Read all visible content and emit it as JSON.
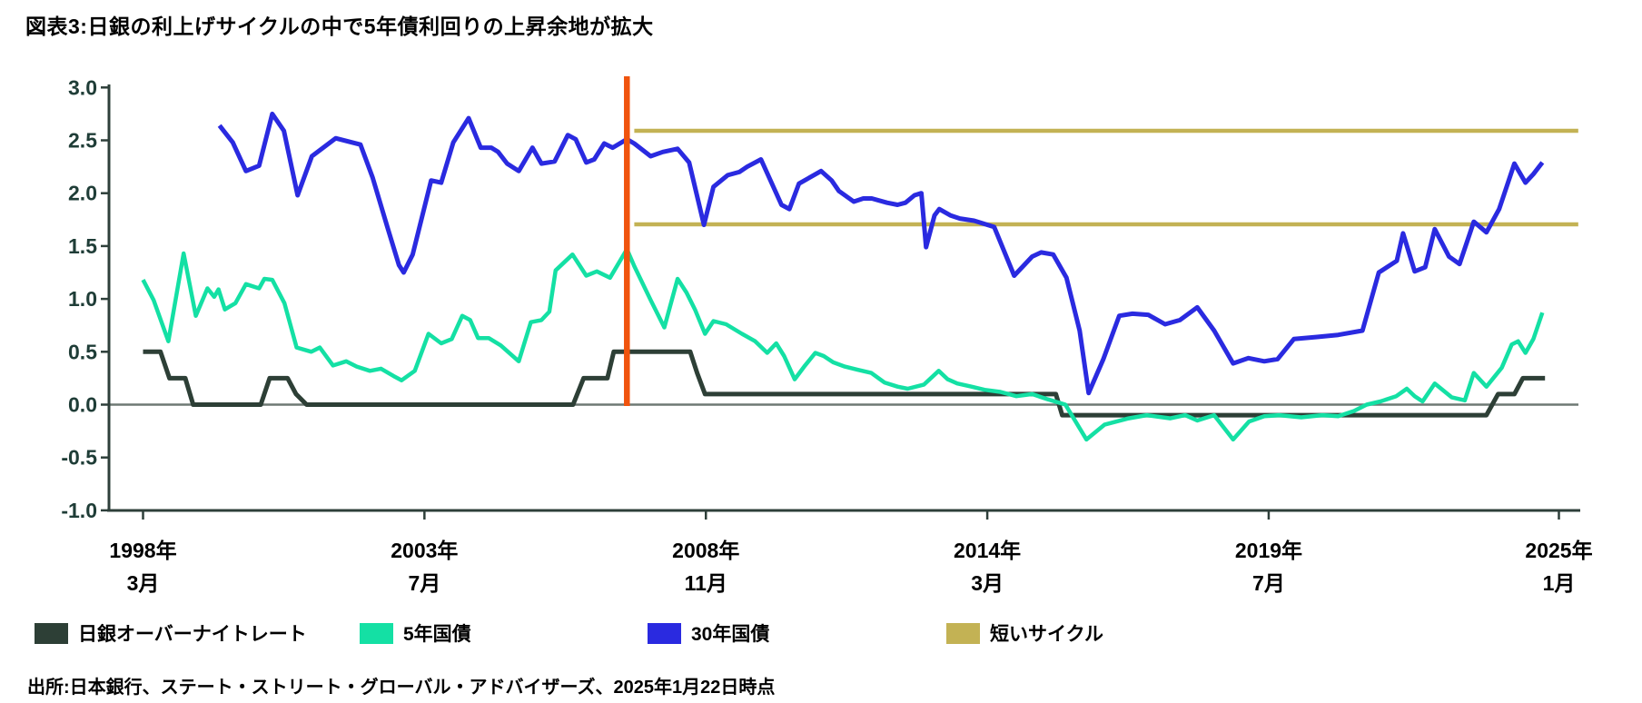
{
  "title": "図表3:日銀の利上げサイクルの中で5年債利回りの上昇余地が拡大",
  "source": "出所:日本銀行、ステート・ストリート・グローバル・アドバイザーズ、2025年1月22日時点",
  "legend": [
    {
      "label": "日銀オーバーナイトレート",
      "color": "#2d3f36"
    },
    {
      "label": "5年国債",
      "color": "#14e0a4"
    },
    {
      "label": "30年国債",
      "color": "#2a2ae0"
    },
    {
      "label": "短いサイクル",
      "color": "#c3b254"
    }
  ],
  "colors": {
    "accent_orange": "#f0540e",
    "axis": "#2e3f3a",
    "y_tick_text": "#1f3d37",
    "x_tick_text": "#000000",
    "zero_line": "#6e7974"
  },
  "chart_data": {
    "type": "line",
    "title": "図表3:日銀の利上げサイクルの中で5年債利回りの上昇余地が拡大",
    "xlabel": "",
    "ylabel": "",
    "ylim": [
      -1.0,
      3.0
    ],
    "grid": false,
    "legend_position": "bottom",
    "y_ticks": [
      "3.0",
      "2.5",
      "2.0",
      "1.5",
      "1.0",
      "0.5",
      "0.0",
      "-0.5",
      "-1.0"
    ],
    "x_ticks": [
      {
        "line1": "1998年",
        "line2": "3月",
        "t": 1998.25
      },
      {
        "line1": "2003年",
        "line2": "7月",
        "t": 2003.583
      },
      {
        "line1": "2008年",
        "line2": "11月",
        "t": 2008.917
      },
      {
        "line1": "2014年",
        "line2": "3月",
        "t": 2014.25
      },
      {
        "line1": "2019年",
        "line2": "7月",
        "t": 2019.583
      },
      {
        "line1": "2025年",
        "line2": "1月",
        "t": 2025.083
      }
    ],
    "series": [
      {
        "name": "日銀オーバーナイトレート",
        "key": "boj-overnight-rate",
        "color": "#2d3f36",
        "width": 5,
        "points": [
          [
            1998.25,
            0.5
          ],
          [
            1998.58,
            0.5
          ],
          [
            1998.75,
            0.25
          ],
          [
            1999.05,
            0.25
          ],
          [
            1999.2,
            0.0
          ],
          [
            2000.48,
            0.0
          ],
          [
            2000.65,
            0.25
          ],
          [
            2000.99,
            0.25
          ],
          [
            2001.15,
            0.1
          ],
          [
            2001.35,
            0.0
          ],
          [
            2006.4,
            0.0
          ],
          [
            2006.6,
            0.25
          ],
          [
            2007.05,
            0.25
          ],
          [
            2007.17,
            0.5
          ],
          [
            2008.62,
            0.5
          ],
          [
            2008.75,
            0.3
          ],
          [
            2008.9,
            0.1
          ],
          [
            2015.55,
            0.1
          ],
          [
            2015.67,
            -0.1
          ],
          [
            2023.71,
            -0.1
          ],
          [
            2023.93,
            0.1
          ],
          [
            2024.24,
            0.1
          ],
          [
            2024.4,
            0.25
          ],
          [
            2024.82,
            0.25
          ]
        ]
      },
      {
        "name": "30年国債",
        "key": "jgb-30y",
        "color": "#2a2ae0",
        "width": 5,
        "points": [
          [
            1999.7,
            2.64
          ],
          [
            1999.95,
            2.48
          ],
          [
            2000.2,
            2.21
          ],
          [
            2000.45,
            2.26
          ],
          [
            2000.7,
            2.75
          ],
          [
            2000.92,
            2.59
          ],
          [
            2001.18,
            1.98
          ],
          [
            2001.45,
            2.35
          ],
          [
            2001.9,
            2.52
          ],
          [
            2002.37,
            2.46
          ],
          [
            2002.6,
            2.15
          ],
          [
            2002.88,
            1.68
          ],
          [
            2003.1,
            1.32
          ],
          [
            2003.19,
            1.25
          ],
          [
            2003.36,
            1.42
          ],
          [
            2003.71,
            2.12
          ],
          [
            2003.9,
            2.1
          ],
          [
            2004.13,
            2.48
          ],
          [
            2004.42,
            2.71
          ],
          [
            2004.65,
            2.43
          ],
          [
            2004.85,
            2.43
          ],
          [
            2004.98,
            2.39
          ],
          [
            2005.15,
            2.28
          ],
          [
            2005.37,
            2.21
          ],
          [
            2005.63,
            2.43
          ],
          [
            2005.8,
            2.28
          ],
          [
            2006.05,
            2.3
          ],
          [
            2006.3,
            2.55
          ],
          [
            2006.45,
            2.51
          ],
          [
            2006.65,
            2.29
          ],
          [
            2006.8,
            2.32
          ],
          [
            2006.99,
            2.47
          ],
          [
            2007.15,
            2.43
          ],
          [
            2007.42,
            2.51
          ],
          [
            2007.56,
            2.47
          ],
          [
            2007.87,
            2.35
          ],
          [
            2008.1,
            2.39
          ],
          [
            2008.38,
            2.42
          ],
          [
            2008.6,
            2.29
          ],
          [
            2008.88,
            1.7
          ],
          [
            2009.06,
            2.06
          ],
          [
            2009.33,
            2.17
          ],
          [
            2009.55,
            2.2
          ],
          [
            2009.7,
            2.25
          ],
          [
            2009.96,
            2.32
          ],
          [
            2010.35,
            1.89
          ],
          [
            2010.5,
            1.85
          ],
          [
            2010.68,
            2.09
          ],
          [
            2011.1,
            2.21
          ],
          [
            2011.3,
            2.12
          ],
          [
            2011.44,
            2.02
          ],
          [
            2011.72,
            1.92
          ],
          [
            2011.9,
            1.95
          ],
          [
            2012.06,
            1.95
          ],
          [
            2012.35,
            1.91
          ],
          [
            2012.55,
            1.89
          ],
          [
            2012.7,
            1.91
          ],
          [
            2012.87,
            1.98
          ],
          [
            2013.0,
            2.0
          ],
          [
            2013.09,
            1.49
          ],
          [
            2013.25,
            1.79
          ],
          [
            2013.34,
            1.85
          ],
          [
            2013.55,
            1.79
          ],
          [
            2013.73,
            1.76
          ],
          [
            2014.0,
            1.74
          ],
          [
            2014.38,
            1.68
          ],
          [
            2014.76,
            1.22
          ],
          [
            2015.1,
            1.4
          ],
          [
            2015.27,
            1.44
          ],
          [
            2015.5,
            1.42
          ],
          [
            2015.75,
            1.2
          ],
          [
            2016.0,
            0.7
          ],
          [
            2016.17,
            0.11
          ],
          [
            2016.45,
            0.43
          ],
          [
            2016.75,
            0.84
          ],
          [
            2017.0,
            0.86
          ],
          [
            2017.3,
            0.85
          ],
          [
            2017.62,
            0.76
          ],
          [
            2017.9,
            0.8
          ],
          [
            2018.23,
            0.92
          ],
          [
            2018.55,
            0.7
          ],
          [
            2018.91,
            0.39
          ],
          [
            2019.2,
            0.44
          ],
          [
            2019.5,
            0.41
          ],
          [
            2019.75,
            0.43
          ],
          [
            2020.06,
            0.62
          ],
          [
            2020.5,
            0.64
          ],
          [
            2020.9,
            0.66
          ],
          [
            2021.36,
            0.7
          ],
          [
            2021.67,
            1.25
          ],
          [
            2022.01,
            1.36
          ],
          [
            2022.13,
            1.62
          ],
          [
            2022.35,
            1.26
          ],
          [
            2022.55,
            1.3
          ],
          [
            2022.73,
            1.66
          ],
          [
            2023.0,
            1.4
          ],
          [
            2023.2,
            1.33
          ],
          [
            2023.47,
            1.73
          ],
          [
            2023.71,
            1.63
          ],
          [
            2023.95,
            1.85
          ],
          [
            2024.24,
            2.28
          ],
          [
            2024.45,
            2.1
          ],
          [
            2024.6,
            2.18
          ],
          [
            2024.77,
            2.29
          ]
        ]
      },
      {
        "name": "5年国債",
        "key": "jgb-5y",
        "color": "#14e0a4",
        "width": 4.5,
        "points": [
          [
            1998.25,
            1.18
          ],
          [
            1998.45,
            0.99
          ],
          [
            1998.73,
            0.6
          ],
          [
            1999.02,
            1.43
          ],
          [
            1999.25,
            0.84
          ],
          [
            1999.47,
            1.1
          ],
          [
            1999.6,
            1.02
          ],
          [
            1999.68,
            1.09
          ],
          [
            1999.8,
            0.9
          ],
          [
            2000.0,
            0.96
          ],
          [
            2000.2,
            1.14
          ],
          [
            2000.45,
            1.1
          ],
          [
            2000.55,
            1.19
          ],
          [
            2000.7,
            1.18
          ],
          [
            2000.93,
            0.96
          ],
          [
            2001.16,
            0.54
          ],
          [
            2001.44,
            0.5
          ],
          [
            2001.6,
            0.54
          ],
          [
            2001.85,
            0.37
          ],
          [
            2002.1,
            0.41
          ],
          [
            2002.3,
            0.36
          ],
          [
            2002.55,
            0.32
          ],
          [
            2002.76,
            0.34
          ],
          [
            2003.0,
            0.27
          ],
          [
            2003.15,
            0.23
          ],
          [
            2003.4,
            0.32
          ],
          [
            2003.66,
            0.67
          ],
          [
            2003.9,
            0.58
          ],
          [
            2004.1,
            0.62
          ],
          [
            2004.3,
            0.84
          ],
          [
            2004.45,
            0.8
          ],
          [
            2004.6,
            0.63
          ],
          [
            2004.8,
            0.63
          ],
          [
            2005.03,
            0.56
          ],
          [
            2005.37,
            0.41
          ],
          [
            2005.6,
            0.78
          ],
          [
            2005.8,
            0.8
          ],
          [
            2005.95,
            0.88
          ],
          [
            2006.07,
            1.27
          ],
          [
            2006.39,
            1.42
          ],
          [
            2006.65,
            1.22
          ],
          [
            2006.85,
            1.26
          ],
          [
            2007.1,
            1.2
          ],
          [
            2007.42,
            1.47
          ],
          [
            2007.56,
            1.31
          ],
          [
            2007.87,
            0.99
          ],
          [
            2008.13,
            0.73
          ],
          [
            2008.38,
            1.19
          ],
          [
            2008.55,
            1.06
          ],
          [
            2008.71,
            0.9
          ],
          [
            2008.9,
            0.67
          ],
          [
            2009.06,
            0.79
          ],
          [
            2009.3,
            0.76
          ],
          [
            2009.6,
            0.67
          ],
          [
            2009.85,
            0.6
          ],
          [
            2010.08,
            0.49
          ],
          [
            2010.25,
            0.58
          ],
          [
            2010.4,
            0.46
          ],
          [
            2010.6,
            0.24
          ],
          [
            2010.78,
            0.36
          ],
          [
            2010.99,
            0.49
          ],
          [
            2011.15,
            0.46
          ],
          [
            2011.33,
            0.4
          ],
          [
            2011.55,
            0.36
          ],
          [
            2011.79,
            0.33
          ],
          [
            2012.05,
            0.3
          ],
          [
            2012.3,
            0.21
          ],
          [
            2012.55,
            0.17
          ],
          [
            2012.74,
            0.15
          ],
          [
            2013.05,
            0.19
          ],
          [
            2013.33,
            0.32
          ],
          [
            2013.5,
            0.24
          ],
          [
            2013.68,
            0.2
          ],
          [
            2013.95,
            0.17
          ],
          [
            2014.2,
            0.14
          ],
          [
            2014.5,
            0.12
          ],
          [
            2014.8,
            0.08
          ],
          [
            2015.1,
            0.1
          ],
          [
            2015.4,
            0.05
          ],
          [
            2015.73,
            0.0
          ],
          [
            2016.13,
            -0.33
          ],
          [
            2016.47,
            -0.19
          ],
          [
            2016.93,
            -0.13
          ],
          [
            2017.27,
            -0.1
          ],
          [
            2017.72,
            -0.13
          ],
          [
            2018.0,
            -0.1
          ],
          [
            2018.23,
            -0.15
          ],
          [
            2018.55,
            -0.1
          ],
          [
            2018.91,
            -0.33
          ],
          [
            2019.21,
            -0.16
          ],
          [
            2019.5,
            -0.11
          ],
          [
            2019.78,
            -0.1
          ],
          [
            2020.2,
            -0.12
          ],
          [
            2020.6,
            -0.1
          ],
          [
            2020.9,
            -0.11
          ],
          [
            2021.2,
            -0.06
          ],
          [
            2021.44,
            0.0
          ],
          [
            2021.7,
            0.03
          ],
          [
            2022.0,
            0.08
          ],
          [
            2022.2,
            0.15
          ],
          [
            2022.35,
            0.08
          ],
          [
            2022.5,
            0.03
          ],
          [
            2022.73,
            0.2
          ],
          [
            2023.05,
            0.07
          ],
          [
            2023.3,
            0.04
          ],
          [
            2023.47,
            0.3
          ],
          [
            2023.71,
            0.17
          ],
          [
            2024.0,
            0.35
          ],
          [
            2024.19,
            0.57
          ],
          [
            2024.31,
            0.6
          ],
          [
            2024.45,
            0.49
          ],
          [
            2024.6,
            0.62
          ],
          [
            2024.77,
            0.87
          ]
        ]
      }
    ],
    "annotations": {
      "vertical_line": {
        "name": "利上げサイクル終点マーカー",
        "t": 2007.42,
        "color": "#f0540e",
        "width": 6.5
      },
      "horizontal_lines": [
        {
          "name": "短いサイクル(上限)",
          "value": 2.59,
          "t_start": 2007.56,
          "t_end": 2025.45,
          "color": "#c3b254",
          "width": 4.5
        },
        {
          "name": "短いサイクル(下限)",
          "value": 1.705,
          "t_start": 2007.56,
          "t_end": 2025.45,
          "color": "#c3b254",
          "width": 4.5
        }
      ]
    }
  }
}
